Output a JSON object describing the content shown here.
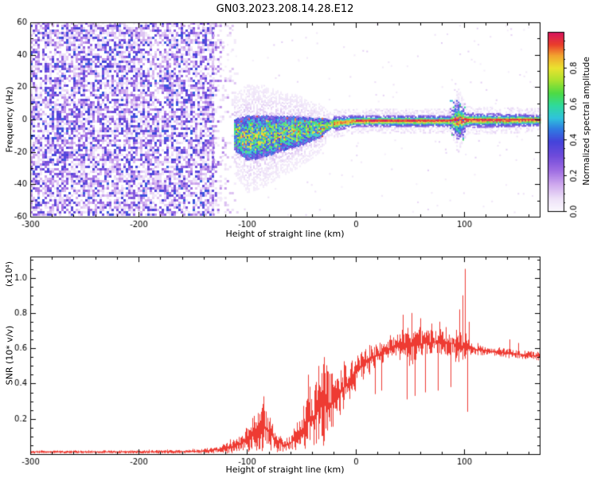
{
  "title": "GN03.2023.208.14.28.E12",
  "background": "#ffffff",
  "chart_data": [
    {
      "type": "heatmap",
      "title": "GN03.2023.208.14.28.E12",
      "xlabel": "Height of straight line (km)",
      "ylabel": "Frequency (Hz)",
      "xlim": [
        -300,
        170
      ],
      "ylim": [
        -60,
        60
      ],
      "xticks": [
        -300,
        -200,
        -100,
        0,
        100
      ],
      "x_minor_step": 20,
      "yticks": [
        -60,
        -40,
        -20,
        0,
        20,
        40,
        60
      ],
      "y_minor_step": 10,
      "grid": false,
      "colorbar": {
        "label": "Normalized spectral amplitude",
        "ticks": [
          0.0,
          0.2,
          0.4,
          0.6,
          0.8
        ],
        "minor_step": 0.05,
        "lim": [
          0,
          1
        ]
      },
      "colormap_stops": [
        [
          0.0,
          "#fbf9fe"
        ],
        [
          0.07,
          "#eee2f8"
        ],
        [
          0.15,
          "#cfa9ee"
        ],
        [
          0.23,
          "#9e6ce2"
        ],
        [
          0.31,
          "#6f4bda"
        ],
        [
          0.39,
          "#4443da"
        ],
        [
          0.46,
          "#2f7ce2"
        ],
        [
          0.52,
          "#2fc2dc"
        ],
        [
          0.59,
          "#2fda9c"
        ],
        [
          0.66,
          "#4eda44"
        ],
        [
          0.73,
          "#a9e22f"
        ],
        [
          0.8,
          "#eae22f"
        ],
        [
          0.87,
          "#f2a22f"
        ],
        [
          0.93,
          "#ea3e2b"
        ],
        [
          1.0,
          "#d6145e"
        ]
      ],
      "noise_region": {
        "x": [
          -300,
          -132
        ],
        "fade_x": [
          -132,
          -106
        ],
        "amp_range": [
          0.05,
          0.43
        ],
        "coverage": 0.68
      },
      "band": {
        "x": [
          -112,
          -100,
          -85,
          -70,
          -55,
          -42,
          -32,
          -26,
          -20
        ],
        "center": [
          -9,
          -11,
          -10,
          -8.5,
          -7,
          -6,
          -4.5,
          -3,
          -2
        ],
        "halfwidth": [
          10,
          14,
          13,
          11,
          9.5,
          7.5,
          6,
          3.5,
          2.5
        ]
      },
      "line": {
        "x": [
          -20,
          0,
          88,
          94,
          102,
          170
        ],
        "center": [
          -2,
          -0.5,
          -0.5,
          0,
          0,
          0
        ],
        "halfwidth": [
          2.5,
          2,
          2,
          7,
          2.5,
          2
        ]
      },
      "burst": {
        "x": 94,
        "halfspan_km": 7,
        "freq_span": 12
      }
    },
    {
      "type": "line",
      "xlabel": "Height of straight line (km)",
      "ylabel": "SNR (10* v/v)",
      "scale_label": "(x10⁴)",
      "line_color": "#ee3b33",
      "xlim": [
        -300,
        170
      ],
      "ylim": [
        0,
        1.12
      ],
      "xticks": [
        -300,
        -200,
        -100,
        0,
        100
      ],
      "x_minor_step": 20,
      "yticks": [
        0.2,
        0.4,
        0.6,
        0.8,
        1.0
      ],
      "y_minor_step": 0.05,
      "envelope": [
        [
          -300,
          0.012,
          0.008
        ],
        [
          -250,
          0.012,
          0.008
        ],
        [
          -200,
          0.013,
          0.009
        ],
        [
          -160,
          0.014,
          0.01
        ],
        [
          -145,
          0.016,
          0.012
        ],
        [
          -132,
          0.022,
          0.018
        ],
        [
          -122,
          0.03,
          0.025
        ],
        [
          -112,
          0.045,
          0.04
        ],
        [
          -104,
          0.065,
          0.06
        ],
        [
          -97,
          0.1,
          0.09
        ],
        [
          -90,
          0.14,
          0.13
        ],
        [
          -84,
          0.15,
          0.14
        ],
        [
          -78,
          0.11,
          0.1
        ],
        [
          -72,
          0.07,
          0.06
        ],
        [
          -66,
          0.05,
          0.045
        ],
        [
          -60,
          0.06,
          0.05
        ],
        [
          -54,
          0.1,
          0.09
        ],
        [
          -48,
          0.15,
          0.14
        ],
        [
          -43,
          0.2,
          0.18
        ],
        [
          -38,
          0.22,
          0.2
        ],
        [
          -33,
          0.26,
          0.22
        ],
        [
          -28,
          0.3,
          0.24
        ],
        [
          -24,
          0.27,
          0.2
        ],
        [
          -20,
          0.3,
          0.16
        ],
        [
          -15,
          0.34,
          0.13
        ],
        [
          -10,
          0.38,
          0.12
        ],
        [
          -5,
          0.42,
          0.11
        ],
        [
          0,
          0.46,
          0.1
        ],
        [
          6,
          0.5,
          0.09
        ],
        [
          12,
          0.53,
          0.08
        ],
        [
          18,
          0.555,
          0.07
        ],
        [
          24,
          0.575,
          0.06
        ],
        [
          30,
          0.595,
          0.05
        ],
        [
          36,
          0.61,
          0.06
        ],
        [
          42,
          0.615,
          0.09
        ],
        [
          48,
          0.61,
          0.11
        ],
        [
          54,
          0.615,
          0.1
        ],
        [
          60,
          0.625,
          0.08
        ],
        [
          66,
          0.63,
          0.07
        ],
        [
          72,
          0.635,
          0.07
        ],
        [
          78,
          0.64,
          0.08
        ],
        [
          84,
          0.635,
          0.08
        ],
        [
          90,
          0.625,
          0.08
        ],
        [
          95,
          0.61,
          0.11
        ],
        [
          100,
          0.615,
          0.1
        ],
        [
          105,
          0.6,
          0.035
        ],
        [
          112,
          0.59,
          0.028
        ],
        [
          120,
          0.585,
          0.025
        ],
        [
          130,
          0.578,
          0.025
        ],
        [
          140,
          0.572,
          0.028
        ],
        [
          150,
          0.566,
          0.025
        ],
        [
          160,
          0.56,
          0.024
        ],
        [
          170,
          0.556,
          0.024
        ]
      ],
      "spikes": [
        [
          -44,
          0.45
        ],
        [
          -34,
          0.5
        ],
        [
          -29,
          0.55
        ],
        [
          -26,
          0.47
        ],
        [
          18,
          0.34
        ],
        [
          24,
          0.36
        ],
        [
          44,
          0.79
        ],
        [
          47,
          0.31
        ],
        [
          52,
          0.8
        ],
        [
          55,
          0.33
        ],
        [
          60,
          0.77
        ],
        [
          64,
          0.35
        ],
        [
          70,
          0.74
        ],
        [
          76,
          0.36
        ],
        [
          83,
          0.72
        ],
        [
          88,
          0.38
        ],
        [
          96,
          0.82
        ],
        [
          99,
          0.9
        ],
        [
          101,
          1.05
        ],
        [
          103,
          0.24
        ],
        [
          105,
          0.75
        ],
        [
          142,
          0.65
        ],
        [
          150,
          0.63
        ]
      ]
    }
  ]
}
